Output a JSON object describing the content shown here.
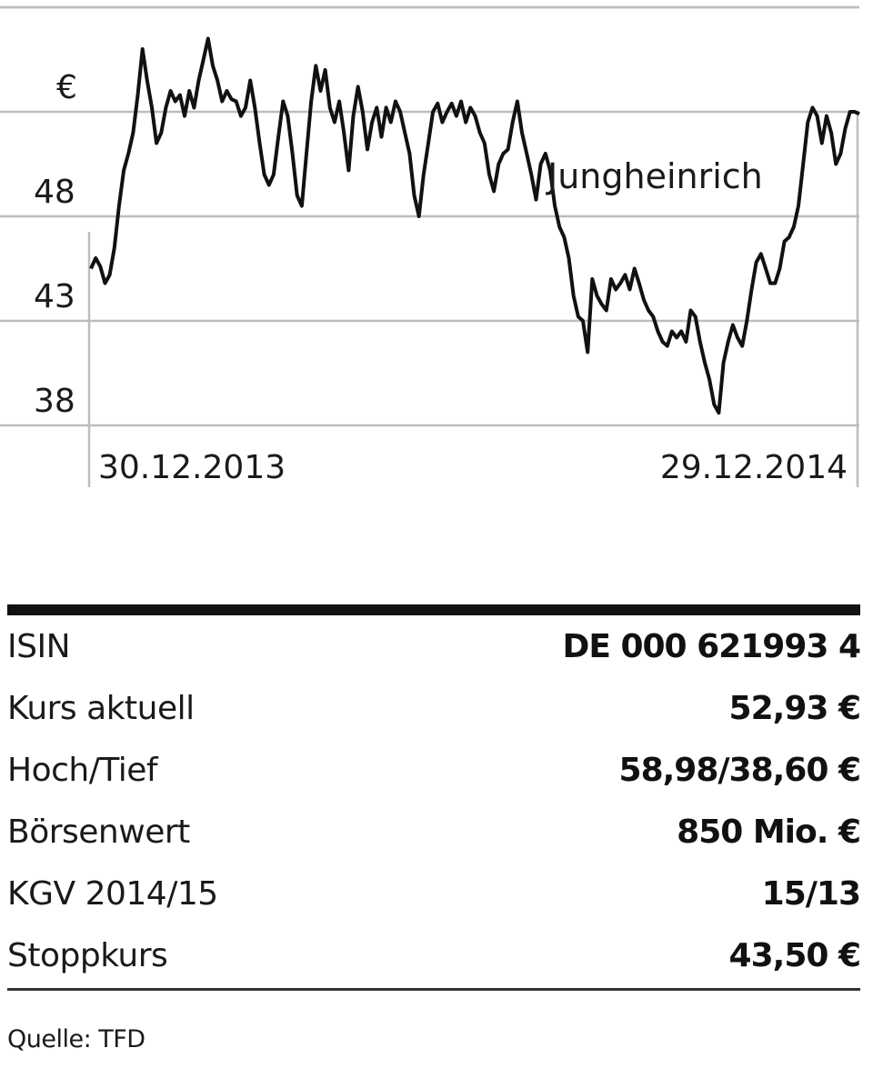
{
  "chart_data": {
    "type": "line",
    "unit_label": "€",
    "series_label": "Jungheinrich",
    "x_start_label": "30.12.2013",
    "x_end_label": "29.12.2014",
    "y_ticks": [
      38,
      43,
      48
    ],
    "ylim": [
      38,
      58
    ],
    "grid": true,
    "series": [
      {
        "values": [
          45.5,
          46.0,
          45.6,
          44.8,
          45.2,
          46.5,
          48.5,
          50.2,
          51.0,
          52.0,
          53.8,
          56.0,
          54.5,
          53.2,
          51.5,
          52.0,
          53.2,
          54.0,
          53.5,
          53.8,
          52.8,
          54.0,
          53.2,
          54.5,
          55.5,
          56.5,
          55.2,
          54.5,
          53.5,
          54.0,
          53.6,
          53.5,
          52.8,
          53.2,
          54.5,
          53.2,
          51.5,
          50.0,
          49.5,
          50.0,
          51.8,
          53.5,
          52.8,
          51.0,
          49.0,
          48.5,
          51.0,
          53.5,
          55.2,
          54.0,
          55.0,
          53.2,
          52.5,
          53.5,
          52.0,
          50.2,
          52.8,
          54.2,
          53.0,
          51.2,
          52.5,
          53.2,
          51.8,
          53.2,
          52.5,
          53.5,
          53.0,
          52.0,
          51.0,
          49.0,
          48.0,
          50.0,
          51.5,
          53.0,
          53.4,
          52.5,
          53.0,
          53.4,
          52.8,
          53.5,
          52.5,
          53.2,
          52.8,
          52.0,
          51.5,
          50.0,
          49.2,
          50.5,
          51.0,
          51.2,
          52.5,
          53.5,
          52.0,
          51.0,
          50.0,
          48.8,
          50.5,
          51.0,
          50.2,
          48.5,
          47.5,
          47.0,
          46.0,
          44.2,
          43.2,
          43.0,
          41.5,
          45.0,
          44.2,
          43.8,
          43.5,
          45.0,
          44.5,
          44.8,
          45.2,
          44.5,
          45.5,
          44.8,
          44.0,
          43.5,
          43.2,
          42.5,
          42.0,
          41.8,
          42.5,
          42.2,
          42.5,
          42.0,
          43.5,
          43.2,
          42.0,
          41.0,
          40.2,
          39.0,
          38.6,
          41.0,
          42.0,
          42.8,
          42.2,
          41.8,
          43.0,
          44.5,
          45.8,
          46.2,
          45.5,
          44.8,
          44.8,
          45.5,
          46.8,
          47.0,
          47.5,
          48.5,
          50.5,
          52.5,
          53.2,
          52.8,
          51.5,
          52.8,
          52.0,
          50.5,
          51.0,
          52.2,
          53.0,
          53.0,
          52.9
        ]
      }
    ]
  },
  "facts": {
    "rows": [
      {
        "label": "ISIN",
        "value": "DE 000 621993 4"
      },
      {
        "label": "Kurs aktuell",
        "value": "52,93 €"
      },
      {
        "label": "Hoch/Tief",
        "value": "58,98/38,60 €"
      },
      {
        "label": "Börsenwert",
        "value": "850 Mio. €"
      },
      {
        "label": "KGV 2014/15",
        "value": "15/13"
      },
      {
        "label": "Stoppkurs",
        "value": "43,50 €"
      }
    ]
  },
  "source": "Quelle: TFD",
  "colors": {
    "line": "#111111",
    "grid": "#bdbdbd",
    "rule": "#111111"
  }
}
